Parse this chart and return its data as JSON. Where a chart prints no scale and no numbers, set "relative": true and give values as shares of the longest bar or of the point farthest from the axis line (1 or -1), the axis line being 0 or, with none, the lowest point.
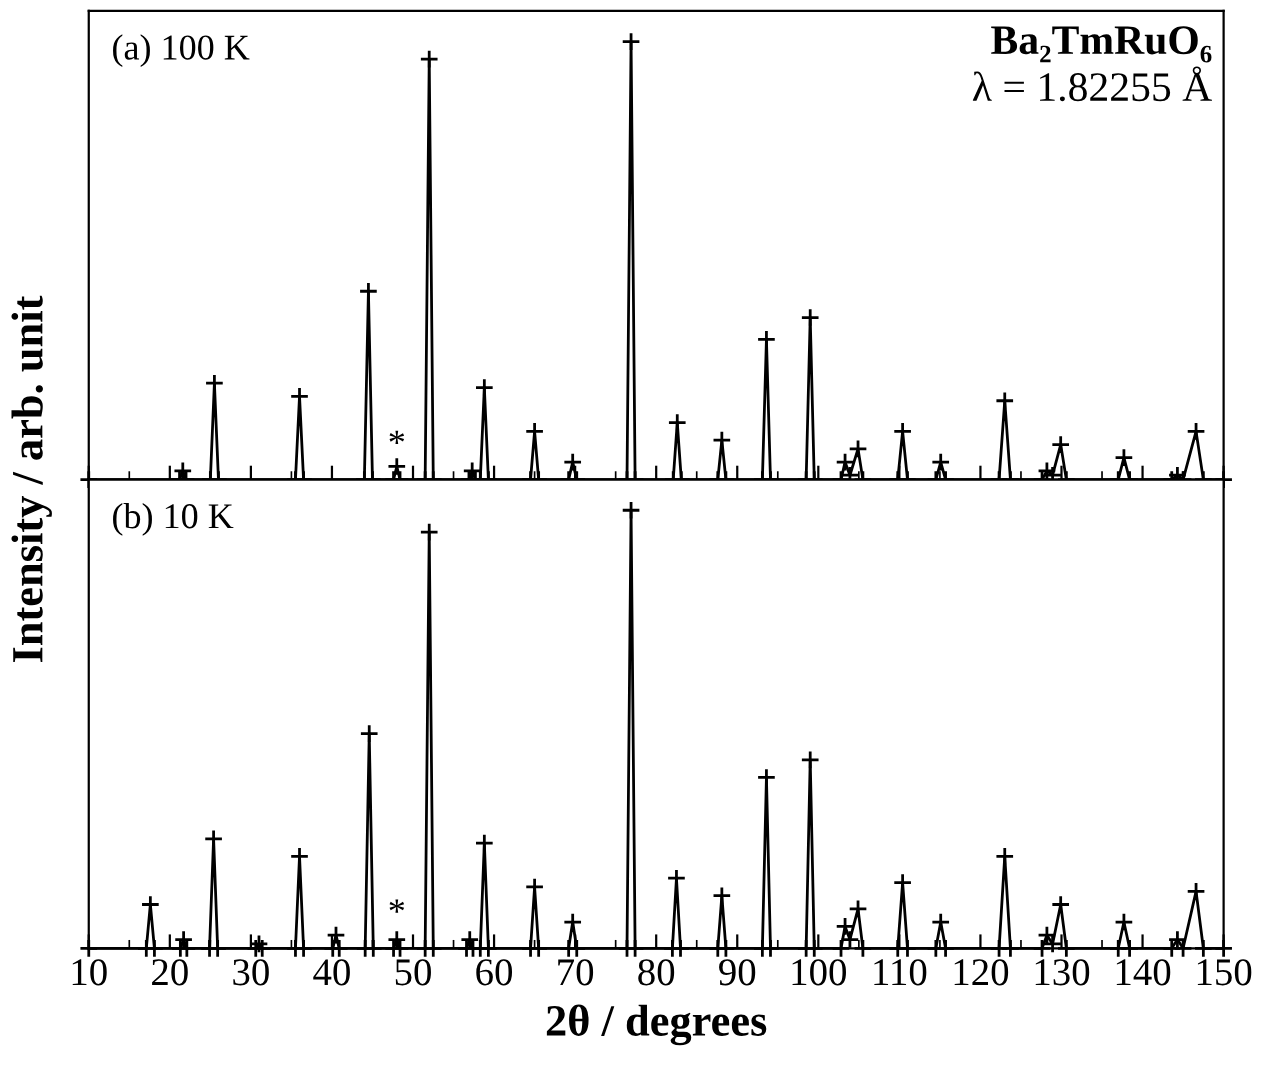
{
  "chart_data": [
    {
      "type": "line",
      "relative": true,
      "xlim": [
        10,
        150
      ],
      "xticks": [
        10,
        20,
        30,
        40,
        50,
        60,
        70,
        80,
        90,
        100,
        110,
        120,
        130,
        140,
        150
      ],
      "tick_labels": false,
      "marker": "cross",
      "line_style": "solid",
      "grid": false,
      "legend": false,
      "ylabel": "Intensity / arb. unit",
      "annotations": [
        "(a) 100 K",
        "Ba₂TmRuO₆",
        "λ = 1.82255 Å",
        {
          "text": "*",
          "x": 48,
          "y": 0.04
        }
      ],
      "series": [
        {
          "color": "#000000",
          "x": [
            10,
            21.2,
            21.6,
            22.0,
            25.0,
            25.5,
            26.0,
            35.5,
            36.0,
            36.5,
            44.0,
            44.5,
            45.0,
            47.6,
            48.0,
            48.4,
            51.5,
            52.0,
            52.5,
            56.9,
            57.3,
            57.7,
            58.3,
            58.8,
            59.3,
            64.5,
            65.0,
            65.5,
            69.2,
            69.7,
            70.2,
            76.4,
            76.9,
            77.4,
            82.1,
            82.6,
            83.1,
            87.6,
            88.1,
            88.6,
            93.1,
            93.6,
            94.1,
            98.5,
            99.0,
            99.5,
            102.8,
            103.3,
            103.9,
            104.9,
            105.5,
            109.8,
            110.4,
            111.0,
            114.5,
            115.1,
            115.7,
            122.3,
            123.0,
            123.7,
            127.6,
            128.2,
            128.9,
            129.9,
            130.6,
            137.0,
            137.7,
            138.4,
            143.6,
            144.3,
            145.0,
            146.6,
            147.5,
            150
          ],
          "values": [
            0,
            0,
            0.02,
            0,
            0,
            0.22,
            0,
            0,
            0.19,
            0,
            0,
            0.43,
            0,
            0,
            0.03,
            0,
            0,
            0.96,
            0,
            0,
            0.02,
            0,
            0,
            0.21,
            0,
            0,
            0.11,
            0,
            0,
            0.04,
            0,
            0,
            1,
            0,
            0,
            0.13,
            0,
            0,
            0.09,
            0,
            0,
            0.32,
            0,
            0,
            0.37,
            0,
            0,
            0.04,
            0.01,
            0.07,
            0,
            0,
            0.11,
            0,
            0,
            0.04,
            0,
            0,
            0.18,
            0,
            0,
            0.02,
            0.01,
            0.08,
            0,
            0,
            0.05,
            0,
            0,
            0.01,
            0,
            0.11,
            0,
            0
          ]
        }
      ]
    },
    {
      "type": "line",
      "relative": true,
      "xlim": [
        10,
        150
      ],
      "xticks": [
        10,
        20,
        30,
        40,
        50,
        60,
        70,
        80,
        90,
        100,
        110,
        120,
        130,
        140,
        150
      ],
      "tick_labels": "x",
      "marker": "cross",
      "line_style": "solid",
      "grid": false,
      "legend": false,
      "xlabel": "2θ / degrees",
      "annotations": [
        "(b) 10 K",
        {
          "text": "*",
          "x": 48,
          "y": 0.04
        }
      ],
      "series": [
        {
          "color": "#000000",
          "x": [
            10,
            17.1,
            17.6,
            18.1,
            21.3,
            21.7,
            22.1,
            24.9,
            25.4,
            25.9,
            30.6,
            31.0,
            31.4,
            35.5,
            36.0,
            36.5,
            40.1,
            40.5,
            40.9,
            44.1,
            44.6,
            45.1,
            47.6,
            48.0,
            48.4,
            51.5,
            52.0,
            52.5,
            56.6,
            57.0,
            57.4,
            58.3,
            58.8,
            59.3,
            64.5,
            65.0,
            65.5,
            69.2,
            69.7,
            70.2,
            76.4,
            76.9,
            77.4,
            82.0,
            82.5,
            83.0,
            87.6,
            88.1,
            88.6,
            93.1,
            93.6,
            94.1,
            98.5,
            99.0,
            99.5,
            102.8,
            103.3,
            103.9,
            104.9,
            105.5,
            109.8,
            110.4,
            111.0,
            114.5,
            115.1,
            115.7,
            122.3,
            123.0,
            123.7,
            127.6,
            128.2,
            128.9,
            129.9,
            130.6,
            137.0,
            137.7,
            138.4,
            143.6,
            144.3,
            145.0,
            146.6,
            147.5,
            150
          ],
          "values": [
            0,
            0,
            0.1,
            0,
            0,
            0.02,
            0,
            0,
            0.25,
            0,
            0,
            0.01,
            0,
            0,
            0.21,
            0,
            0,
            0.03,
            0,
            0,
            0.49,
            0,
            0,
            0.02,
            0,
            0,
            0.95,
            0,
            0,
            0.02,
            0,
            0,
            0.24,
            0,
            0,
            0.14,
            0,
            0,
            0.06,
            0,
            0,
            1,
            0,
            0,
            0.16,
            0,
            0,
            0.12,
            0,
            0,
            0.39,
            0,
            0,
            0.43,
            0,
            0,
            0.05,
            0.02,
            0.09,
            0,
            0,
            0.15,
            0,
            0,
            0.06,
            0,
            0,
            0.21,
            0,
            0,
            0.03,
            0.01,
            0.1,
            0,
            0,
            0.06,
            0,
            0,
            0.02,
            0,
            0.13,
            0,
            0
          ]
        }
      ]
    }
  ]
}
